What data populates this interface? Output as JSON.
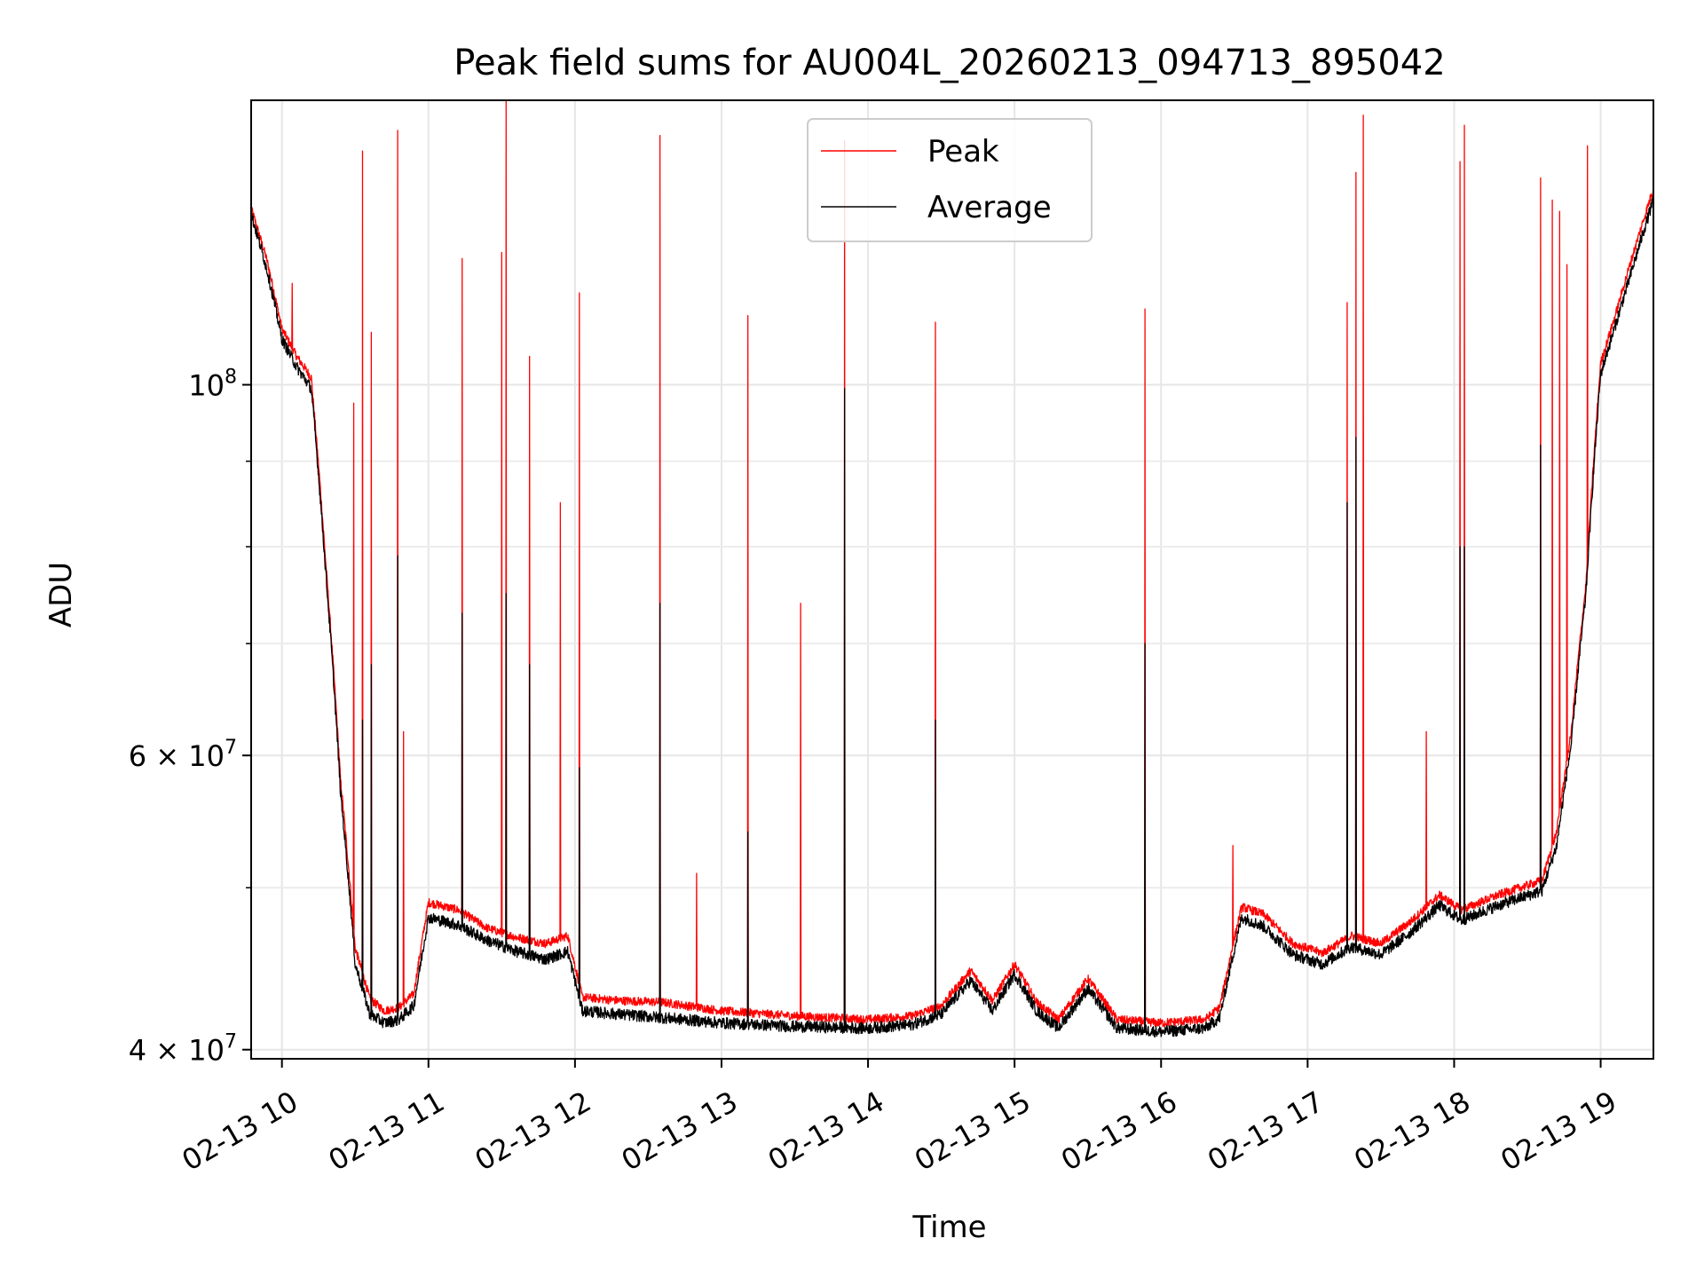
{
  "chart_data": {
    "type": "line",
    "title": "Peak field sums for AU004L_20260213_094713_895042",
    "xlabel": "Time",
    "ylabel": "ADU",
    "yscale": "log",
    "xlim": [
      9.79,
      19.36
    ],
    "ylim": [
      39500000,
      148000000
    ],
    "grid": true,
    "legend_position": "upper-center",
    "x_ticks": [
      {
        "value": 10,
        "label": "02-13 10"
      },
      {
        "value": 11,
        "label": "02-13 11"
      },
      {
        "value": 12,
        "label": "02-13 12"
      },
      {
        "value": 13,
        "label": "02-13 13"
      },
      {
        "value": 14,
        "label": "02-13 14"
      },
      {
        "value": 15,
        "label": "02-13 15"
      },
      {
        "value": 16,
        "label": "02-13 16"
      },
      {
        "value": 17,
        "label": "02-13 17"
      },
      {
        "value": 18,
        "label": "02-13 18"
      },
      {
        "value": 19,
        "label": "02-13 19"
      }
    ],
    "y_ticks": [
      {
        "value": 40000000,
        "base": "4 × 10",
        "exp": "7"
      },
      {
        "value": 60000000,
        "base": "6 × 10",
        "exp": "7"
      },
      {
        "value": 100000000,
        "base": "10",
        "exp": "8"
      }
    ],
    "y_minor_ticks": [
      50000000,
      70000000,
      80000000,
      90000000
    ],
    "baseline_x_hours": [
      9.79,
      9.9,
      10.0,
      10.1,
      10.2,
      10.3,
      10.4,
      10.5,
      10.6,
      10.7,
      10.8,
      10.9,
      11.0,
      11.2,
      11.4,
      11.6,
      11.8,
      11.95,
      12.05,
      12.3,
      12.6,
      13.0,
      13.5,
      14.0,
      14.3,
      14.5,
      14.7,
      14.85,
      15.0,
      15.15,
      15.3,
      15.5,
      15.7,
      16.0,
      16.3,
      16.4,
      16.55,
      16.7,
      16.9,
      17.1,
      17.3,
      17.5,
      17.7,
      17.9,
      18.05,
      18.3,
      18.6,
      18.7,
      18.8,
      18.9,
      19.0,
      19.1,
      19.2,
      19.36
    ],
    "series": [
      {
        "name": "Peak",
        "color": "#ff0000",
        "baseline_values": [
          127500000,
          118500000,
          108000000,
          104000000,
          101000000,
          78000000,
          58000000,
          46000000,
          42900000,
          42200000,
          42400000,
          43200000,
          49000000,
          48500000,
          47300000,
          46700000,
          46300000,
          46800000,
          43000000,
          42800000,
          42700000,
          42200000,
          41900000,
          41700000,
          41900000,
          42500000,
          44600000,
          42800000,
          45000000,
          42700000,
          41700000,
          44100000,
          41700000,
          41500000,
          41700000,
          42400000,
          48700000,
          48200000,
          46300000,
          45700000,
          46800000,
          46300000,
          47700000,
          49500000,
          48500000,
          49500000,
          50500000,
          54000000,
          62000000,
          76000000,
          103000000,
          110000000,
          118000000,
          131000000
        ],
        "spikes": [
          {
            "t": 10.07,
            "v": 115000000
          },
          {
            "t": 10.49,
            "v": 97500000
          },
          {
            "t": 10.55,
            "v": 138000000
          },
          {
            "t": 10.61,
            "v": 107500000
          },
          {
            "t": 10.79,
            "v": 142000000
          },
          {
            "t": 10.83,
            "v": 62000000
          },
          {
            "t": 11.23,
            "v": 119000000
          },
          {
            "t": 11.5,
            "v": 120000000
          },
          {
            "t": 11.53,
            "v": 148000000
          },
          {
            "t": 11.69,
            "v": 104000000
          },
          {
            "t": 11.9,
            "v": 85000000
          },
          {
            "t": 12.03,
            "v": 113500000
          },
          {
            "t": 12.58,
            "v": 141000000
          },
          {
            "t": 12.83,
            "v": 51000000
          },
          {
            "t": 13.18,
            "v": 110000000
          },
          {
            "t": 13.54,
            "v": 74000000
          },
          {
            "t": 13.84,
            "v": 140000000
          },
          {
            "t": 14.46,
            "v": 109000000
          },
          {
            "t": 15.89,
            "v": 111000000
          },
          {
            "t": 16.49,
            "v": 53000000
          },
          {
            "t": 17.27,
            "v": 112000000
          },
          {
            "t": 17.33,
            "v": 134000000
          },
          {
            "t": 17.38,
            "v": 145000000
          },
          {
            "t": 17.81,
            "v": 62000000
          },
          {
            "t": 18.04,
            "v": 136000000
          },
          {
            "t": 18.07,
            "v": 143000000
          },
          {
            "t": 18.59,
            "v": 133000000
          },
          {
            "t": 18.67,
            "v": 129000000
          },
          {
            "t": 18.72,
            "v": 127000000
          },
          {
            "t": 18.77,
            "v": 118000000
          },
          {
            "t": 18.91,
            "v": 139000000
          }
        ]
      },
      {
        "name": "Average",
        "color": "#000000",
        "baseline_values": [
          126500000,
          117000000,
          106500000,
          102500000,
          99500000,
          77000000,
          57000000,
          45000000,
          42000000,
          41500000,
          41700000,
          42500000,
          48000000,
          47500000,
          46500000,
          45800000,
          45300000,
          45800000,
          42200000,
          42000000,
          41800000,
          41500000,
          41300000,
          41200000,
          41400000,
          42000000,
          44000000,
          42200000,
          44400000,
          42200000,
          41200000,
          43500000,
          41200000,
          41000000,
          41200000,
          41800000,
          48000000,
          47400000,
          45600000,
          45000000,
          46100000,
          45600000,
          47000000,
          48800000,
          47800000,
          48800000,
          49800000,
          53000000,
          61000000,
          75000000,
          101500000,
          108500000,
          116000000,
          129000000
        ],
        "spikes": [
          {
            "t": 10.55,
            "v": 63000000
          },
          {
            "t": 10.61,
            "v": 68000000
          },
          {
            "t": 10.79,
            "v": 79000000
          },
          {
            "t": 11.23,
            "v": 73000000
          },
          {
            "t": 11.53,
            "v": 75000000
          },
          {
            "t": 11.69,
            "v": 68000000
          },
          {
            "t": 12.03,
            "v": 59000000
          },
          {
            "t": 12.58,
            "v": 74000000
          },
          {
            "t": 13.18,
            "v": 54000000
          },
          {
            "t": 13.84,
            "v": 99500000
          },
          {
            "t": 14.46,
            "v": 63000000
          },
          {
            "t": 15.89,
            "v": 70000000
          },
          {
            "t": 17.27,
            "v": 85000000
          },
          {
            "t": 17.33,
            "v": 93000000
          },
          {
            "t": 18.04,
            "v": 80000000
          },
          {
            "t": 18.07,
            "v": 80000000
          },
          {
            "t": 18.59,
            "v": 92000000
          }
        ]
      }
    ]
  }
}
